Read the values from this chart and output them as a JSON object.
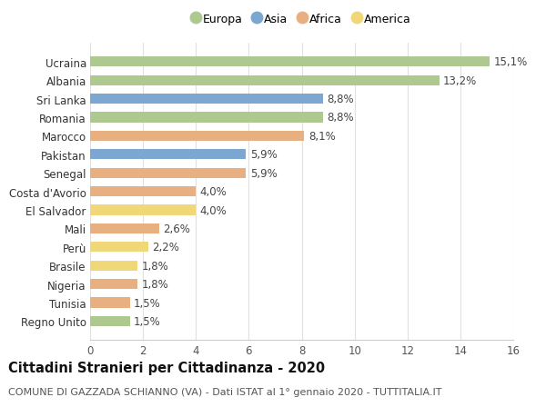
{
  "countries": [
    "Ucraina",
    "Albania",
    "Sri Lanka",
    "Romania",
    "Marocco",
    "Pakistan",
    "Senegal",
    "Costa d'Avorio",
    "El Salvador",
    "Mali",
    "Perù",
    "Brasile",
    "Nigeria",
    "Tunisia",
    "Regno Unito"
  ],
  "values": [
    15.1,
    13.2,
    8.8,
    8.8,
    8.1,
    5.9,
    5.9,
    4.0,
    4.0,
    2.6,
    2.2,
    1.8,
    1.8,
    1.5,
    1.5
  ],
  "continents": [
    "Europa",
    "Europa",
    "Asia",
    "Europa",
    "Africa",
    "Asia",
    "Africa",
    "Africa",
    "America",
    "Africa",
    "America",
    "America",
    "Africa",
    "Africa",
    "Europa"
  ],
  "colors": {
    "Europa": "#adc990",
    "Asia": "#7ba7d0",
    "Africa": "#e8b080",
    "America": "#f0d878"
  },
  "legend_order": [
    "Europa",
    "Asia",
    "Africa",
    "America"
  ],
  "title": "Cittadini Stranieri per Cittadinanza - 2020",
  "subtitle": "COMUNE DI GAZZADA SCHIANNO (VA) - Dati ISTAT al 1° gennaio 2020 - TUTTITALIA.IT",
  "xlim": [
    0,
    16
  ],
  "xticks": [
    0,
    2,
    4,
    6,
    8,
    10,
    12,
    14,
    16
  ],
  "background_color": "#ffffff",
  "grid_color": "#e0e0e0",
  "bar_height": 0.55,
  "label_fontsize": 8.5,
  "tick_fontsize": 8.5,
  "title_fontsize": 10.5,
  "subtitle_fontsize": 8
}
